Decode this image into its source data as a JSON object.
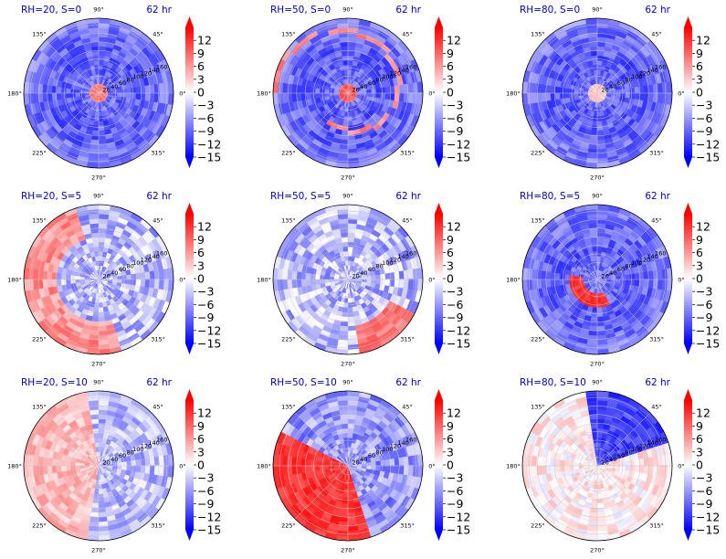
{
  "figure": {
    "time_label": "62 hr",
    "colors": {
      "title": "#0000cc",
      "neg_extreme": "#0000ff",
      "neutral": "#ffffff",
      "pos_extreme": "#ff0000"
    }
  },
  "chart_data": [
    {
      "type": "heatmap",
      "projection": "polar",
      "title": "RH=20, S=0",
      "time": "62 hr",
      "bg": "neg",
      "features": [
        {
          "type": "core",
          "value": 8
        }
      ]
    },
    {
      "type": "heatmap",
      "projection": "polar",
      "title": "RH=50, S=0",
      "time": "62 hr",
      "bg": "neg",
      "features": [
        {
          "type": "core",
          "value": 10
        },
        {
          "type": "spiral",
          "value": 7
        }
      ]
    },
    {
      "type": "heatmap",
      "projection": "polar",
      "title": "RH=80, S=0",
      "time": "62 hr",
      "bg": "neg",
      "features": [
        {
          "type": "core",
          "value": 3
        }
      ]
    },
    {
      "type": "heatmap",
      "projection": "polar",
      "title": "RH=20, S=5",
      "time": "62 hr",
      "bg": "mixed",
      "features": [
        {
          "type": "outer_arc",
          "value": 6
        }
      ]
    },
    {
      "type": "heatmap",
      "projection": "polar",
      "title": "RH=50, S=5",
      "time": "62 hr",
      "bg": "mixed",
      "features": [
        {
          "type": "southeast_band",
          "value": 8
        }
      ]
    },
    {
      "type": "heatmap",
      "projection": "polar",
      "title": "RH=80, S=5",
      "time": "62 hr",
      "bg": "neg",
      "features": [
        {
          "type": "inner_arc",
          "value": 12
        }
      ]
    },
    {
      "type": "heatmap",
      "projection": "polar",
      "title": "RH=20, S=10",
      "time": "62 hr",
      "bg": "split_pos_west",
      "features": []
    },
    {
      "type": "heatmap",
      "projection": "polar",
      "title": "RH=50, S=10",
      "time": "62 hr",
      "bg": "split_strong_west",
      "features": []
    },
    {
      "type": "heatmap",
      "projection": "polar",
      "title": "RH=80, S=10",
      "time": "62 hr",
      "bg": "split_northeast_neg",
      "features": []
    }
  ],
  "axes": {
    "angle_labels": [
      "0°",
      "45°",
      "90°",
      "135°",
      "180°",
      "225°",
      "270°",
      "315°"
    ],
    "radial_ticks": [
      20,
      40,
      60,
      80,
      100,
      120,
      140,
      160
    ],
    "rmax": 175
  },
  "colorbar": {
    "vmin": -15,
    "vmax": 15,
    "ticks": [
      12,
      9,
      6,
      3,
      0,
      -3,
      -6,
      -9,
      -12,
      -15
    ],
    "tick_labels": [
      "12",
      "9",
      "6",
      "3",
      "0",
      "−3",
      "−6",
      "−9",
      "−12",
      "−15"
    ],
    "extend": "both"
  }
}
